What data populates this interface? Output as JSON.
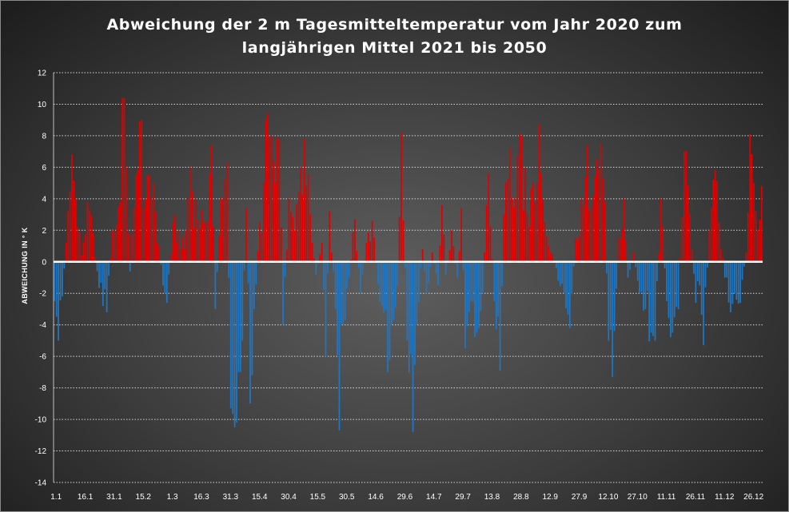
{
  "chart_data": {
    "type": "bar",
    "title": "Abweichung der 2 m Tagesmitteltemperatur  vom Jahr 2020 zum\nlangjährigen Mittel 2021 bis 2050",
    "ylabel": "ABWEICHUNG IN ° K",
    "xlabel": "",
    "ylim": [
      -14,
      12
    ],
    "yticks": [
      12,
      10,
      8,
      6,
      4,
      2,
      0,
      -2,
      -4,
      -6,
      -8,
      -10,
      -12,
      -14
    ],
    "x_tick_labels": [
      "1.1",
      "16.1",
      "31.1",
      "15.2",
      "1.3",
      "16.3",
      "31.3",
      "15.4",
      "30.4",
      "15.5",
      "30.5",
      "14.6",
      "29.6",
      "14.7",
      "29.7",
      "13.8",
      "28.8",
      "12.9",
      "27.9",
      "12.10",
      "27.10",
      "11.11",
      "26.11",
      "11.12",
      "26.12"
    ],
    "grid": "horizontal dotted",
    "colors": {
      "positive": "#e00000",
      "negative": "#1f77c4",
      "zero_line": "#ffffff",
      "grid": "#d8d8d8"
    },
    "anchor_values": [
      {
        "day": 1,
        "value": -2.5
      },
      {
        "day": 3,
        "value": -5.0
      },
      {
        "day": 5,
        "value": -2.2
      },
      {
        "day": 8,
        "value": 3.2
      },
      {
        "day": 10,
        "value": 6.8
      },
      {
        "day": 12,
        "value": 4.0
      },
      {
        "day": 15,
        "value": 0.4
      },
      {
        "day": 18,
        "value": 3.8
      },
      {
        "day": 21,
        "value": 1.8
      },
      {
        "day": 23,
        "value": -0.6
      },
      {
        "day": 26,
        "value": -2.8
      },
      {
        "day": 28,
        "value": -3.2
      },
      {
        "day": 31,
        "value": 2.0
      },
      {
        "day": 34,
        "value": 3.5
      },
      {
        "day": 36,
        "value": 10.4
      },
      {
        "day": 38,
        "value": 6.0
      },
      {
        "day": 40,
        "value": -0.6
      },
      {
        "day": 43,
        "value": 5.5
      },
      {
        "day": 46,
        "value": 9.0
      },
      {
        "day": 48,
        "value": 4.0
      },
      {
        "day": 52,
        "value": 5.0
      },
      {
        "day": 55,
        "value": 1.0
      },
      {
        "day": 57,
        "value": -1.5
      },
      {
        "day": 59,
        "value": -2.6
      },
      {
        "day": 62,
        "value": 2.5
      },
      {
        "day": 65,
        "value": 2.0
      },
      {
        "day": 68,
        "value": 0.8
      },
      {
        "day": 71,
        "value": 6.0
      },
      {
        "day": 74,
        "value": 4.0
      },
      {
        "day": 78,
        "value": 2.5
      },
      {
        "day": 82,
        "value": 7.4
      },
      {
        "day": 84,
        "value": -3.0
      },
      {
        "day": 87,
        "value": 4.0
      },
      {
        "day": 90,
        "value": 6.3
      },
      {
        "day": 92,
        "value": -9.3
      },
      {
        "day": 94,
        "value": -10.5
      },
      {
        "day": 96,
        "value": -7.0
      },
      {
        "day": 98,
        "value": -5.0
      },
      {
        "day": 100,
        "value": 3.4
      },
      {
        "day": 102,
        "value": -9.0
      },
      {
        "day": 104,
        "value": -3.0
      },
      {
        "day": 107,
        "value": 2.5
      },
      {
        "day": 109,
        "value": 5.0
      },
      {
        "day": 111,
        "value": 9.4
      },
      {
        "day": 113,
        "value": 8.0
      },
      {
        "day": 115,
        "value": 5.0
      },
      {
        "day": 117,
        "value": 7.8
      },
      {
        "day": 119,
        "value": -4.0
      },
      {
        "day": 122,
        "value": 4.0
      },
      {
        "day": 125,
        "value": 2.0
      },
      {
        "day": 128,
        "value": 6.0
      },
      {
        "day": 130,
        "value": 7.8
      },
      {
        "day": 133,
        "value": 3.0
      },
      {
        "day": 136,
        "value": -0.8
      },
      {
        "day": 139,
        "value": 1.2
      },
      {
        "day": 141,
        "value": -6.0
      },
      {
        "day": 143,
        "value": 3.2
      },
      {
        "day": 146,
        "value": -3.0
      },
      {
        "day": 148,
        "value": -10.7
      },
      {
        "day": 150,
        "value": -4.0
      },
      {
        "day": 153,
        "value": -1.0
      },
      {
        "day": 156,
        "value": 2.7
      },
      {
        "day": 159,
        "value": -2.0
      },
      {
        "day": 162,
        "value": 1.2
      },
      {
        "day": 165,
        "value": 2.6
      },
      {
        "day": 168,
        "value": -1.4
      },
      {
        "day": 171,
        "value": -3.2
      },
      {
        "day": 173,
        "value": -7.0
      },
      {
        "day": 175,
        "value": -4.0
      },
      {
        "day": 178,
        "value": -1.5
      },
      {
        "day": 180,
        "value": 8.2
      },
      {
        "day": 183,
        "value": -5.0
      },
      {
        "day": 186,
        "value": -10.8
      },
      {
        "day": 188,
        "value": -4.0
      },
      {
        "day": 191,
        "value": 0.8
      },
      {
        "day": 193,
        "value": -2.0
      },
      {
        "day": 196,
        "value": 0.6
      },
      {
        "day": 199,
        "value": -1.5
      },
      {
        "day": 201,
        "value": 3.6
      },
      {
        "day": 203,
        "value": -0.8
      },
      {
        "day": 206,
        "value": 2.0
      },
      {
        "day": 209,
        "value": -1.0
      },
      {
        "day": 211,
        "value": 3.4
      },
      {
        "day": 213,
        "value": -5.5
      },
      {
        "day": 216,
        "value": -2.5
      },
      {
        "day": 219,
        "value": -4.5
      },
      {
        "day": 222,
        "value": -2.0
      },
      {
        "day": 225,
        "value": 5.6
      },
      {
        "day": 228,
        "value": -2.5
      },
      {
        "day": 231,
        "value": -6.9
      },
      {
        "day": 233,
        "value": 3.0
      },
      {
        "day": 236,
        "value": 7.2
      },
      {
        "day": 239,
        "value": 4.0
      },
      {
        "day": 242,
        "value": 8.0
      },
      {
        "day": 245,
        "value": 3.0
      },
      {
        "day": 248,
        "value": 5.0
      },
      {
        "day": 251,
        "value": 8.7
      },
      {
        "day": 253,
        "value": 4.0
      },
      {
        "day": 256,
        "value": 1.0
      },
      {
        "day": 258,
        "value": 0.5
      },
      {
        "day": 261,
        "value": -1.2
      },
      {
        "day": 264,
        "value": -2.0
      },
      {
        "day": 267,
        "value": -4.2
      },
      {
        "day": 270,
        "value": 1.5
      },
      {
        "day": 273,
        "value": 4.0
      },
      {
        "day": 276,
        "value": 7.4
      },
      {
        "day": 278,
        "value": 3.5
      },
      {
        "day": 281,
        "value": 6.5
      },
      {
        "day": 283,
        "value": 7.5
      },
      {
        "day": 285,
        "value": 3.8
      },
      {
        "day": 287,
        "value": -5.0
      },
      {
        "day": 289,
        "value": -7.3
      },
      {
        "day": 292,
        "value": 1.5
      },
      {
        "day": 295,
        "value": 4.0
      },
      {
        "day": 297,
        "value": -1.0
      },
      {
        "day": 300,
        "value": 0.6
      },
      {
        "day": 303,
        "value": -2.0
      },
      {
        "day": 306,
        "value": -3.0
      },
      {
        "day": 309,
        "value": -4.5
      },
      {
        "day": 311,
        "value": -5.0
      },
      {
        "day": 314,
        "value": 4.0
      },
      {
        "day": 317,
        "value": -2.5
      },
      {
        "day": 320,
        "value": -4.5
      },
      {
        "day": 323,
        "value": -3.0
      },
      {
        "day": 326,
        "value": 7.0
      },
      {
        "day": 329,
        "value": 3.0
      },
      {
        "day": 332,
        "value": -2.6
      },
      {
        "day": 334,
        "value": -1.5
      },
      {
        "day": 336,
        "value": -5.3
      },
      {
        "day": 339,
        "value": 2.0
      },
      {
        "day": 342,
        "value": 5.8
      },
      {
        "day": 344,
        "value": 2.5
      },
      {
        "day": 347,
        "value": -1.0
      },
      {
        "day": 350,
        "value": -3.2
      },
      {
        "day": 352,
        "value": -2.0
      },
      {
        "day": 355,
        "value": -2.6
      },
      {
        "day": 358,
        "value": 0.6
      },
      {
        "day": 360,
        "value": 8.1
      },
      {
        "day": 362,
        "value": 5.0
      },
      {
        "day": 364,
        "value": 2.0
      },
      {
        "day": 366,
        "value": 4.8
      }
    ]
  }
}
